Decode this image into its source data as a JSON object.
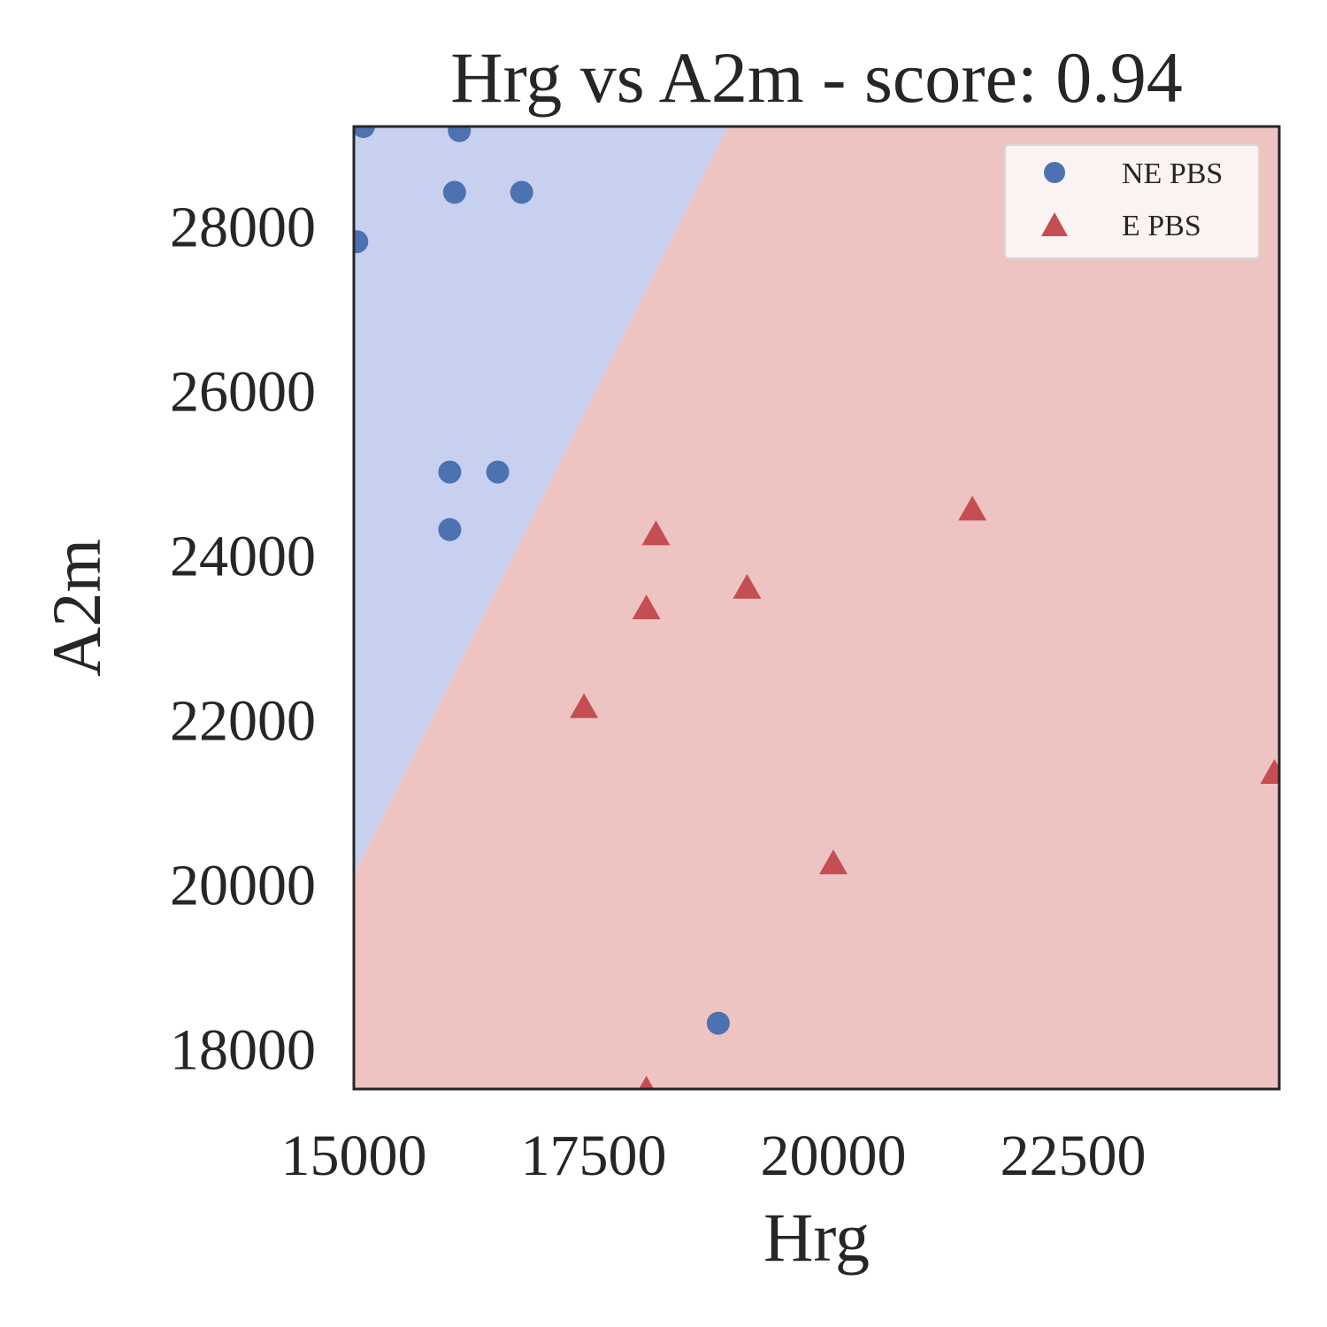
{
  "chart_data": {
    "type": "scatter",
    "title": "Hrg vs A2m - score: 0.94",
    "xlabel": "Hrg",
    "ylabel": "A2m",
    "xlim": [
      15000,
      24650
    ],
    "ylim": [
      17500,
      29200
    ],
    "xticks": [
      "15000",
      "17500",
      "20000",
      "22500"
    ],
    "yticks": [
      "18000",
      "20000",
      "22000",
      "24000",
      "26000",
      "28000"
    ],
    "grid": false,
    "legend_position": "top-right",
    "decision_boundary": [
      [
        15000,
        20100
      ],
      [
        18900,
        29200
      ]
    ],
    "region_colors": {
      "NE PBS": "#c8d0f0",
      "E PBS": "#eec4c3"
    },
    "series": [
      {
        "name": "NE PBS",
        "marker": "circle",
        "color": "#4c72b0",
        "points": [
          [
            15100,
            29200
          ],
          [
            16100,
            29150
          ],
          [
            16050,
            28400
          ],
          [
            16750,
            28400
          ],
          [
            15030,
            27800
          ],
          [
            16000,
            25000
          ],
          [
            16500,
            25000
          ],
          [
            16000,
            24300
          ],
          [
            18800,
            18300
          ]
        ]
      },
      {
        "name": "E PBS",
        "marker": "triangle",
        "color": "#c44e52",
        "points": [
          [
            18150,
            24250
          ],
          [
            21450,
            24550
          ],
          [
            19100,
            23600
          ],
          [
            18050,
            23350
          ],
          [
            17400,
            22150
          ],
          [
            20000,
            20250
          ],
          [
            24600,
            21350
          ],
          [
            18050,
            17500
          ]
        ]
      }
    ]
  }
}
